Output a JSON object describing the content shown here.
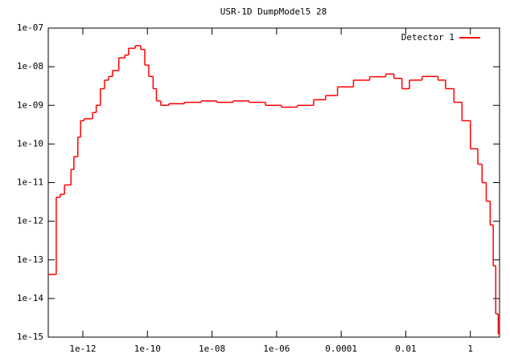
{
  "chart_data": {
    "type": "step",
    "title": "USR-1D DumpModel5 28",
    "xlog": true,
    "ylog": true,
    "legend": "top-right",
    "xlim": [
      8.5e-14,
      8
    ],
    "ylim": [
      1e-15,
      1e-07
    ],
    "xticks": [
      1e-12,
      1e-10,
      {
        "value": 1e-08,
        "label": "1e-08"
      },
      {
        "value": 1e-06,
        "label": "1e-06"
      },
      0.0001,
      0.01,
      1
    ],
    "yticks": [
      {
        "value": 1e-15,
        "label": "1e-15"
      },
      {
        "value": 1e-14,
        "label": "1e-14"
      },
      {
        "value": 1e-13,
        "label": "1e-13"
      },
      {
        "value": 1e-12,
        "label": "1e-12"
      },
      {
        "value": 1e-11,
        "label": "1e-11"
      },
      {
        "value": 1e-10,
        "label": "1e-10"
      },
      {
        "value": 1e-09,
        "label": "1e-09"
      },
      {
        "value": 1e-08,
        "label": "1e-08"
      },
      {
        "value": 1e-07,
        "label": "1e-07"
      }
    ],
    "x": [
      8.5e-14,
      1.5e-13,
      2e-13,
      2.7e-13,
      4.3e-13,
      5.3e-13,
      7e-13,
      8.5e-13,
      1.1e-12,
      2e-12,
      2.6e-12,
      3.5e-12,
      4.7e-12,
      6.3e-12,
      8.3e-12,
      1.3e-11,
      2e-11,
      2.6e-11,
      4.2e-11,
      6.2e-11,
      8.3e-11,
      1.1e-10,
      1.5e-10,
      1.9e-10,
      2.6e-10,
      4.6e-10,
      1.4e-09,
      4.6e-09,
      1.4e-08,
      4.5e-08,
      1.4e-07,
      4.5e-07,
      1.4e-06,
      4.4e-06,
      1.4e-05,
      3.3e-05,
      7.7e-05,
      0.00024,
      0.00076,
      0.0024,
      0.0043,
      0.0076,
      0.013,
      0.032,
      0.1,
      0.17,
      0.31,
      0.55,
      1,
      1.7,
      2.3,
      3.1,
      4.1,
      5.1,
      6.1,
      7.3
    ],
    "series": [
      {
        "name": "Detector 1",
        "color": "#ff0000",
        "values": [
          4.2e-14,
          4.2e-12,
          5e-12,
          8.7e-12,
          2.2e-11,
          4.7e-11,
          1.5e-10,
          4e-10,
          4.5e-10,
          6.5e-10,
          1e-09,
          2.7e-09,
          4.5e-09,
          5.6e-09,
          8e-09,
          1.7e-08,
          2e-08,
          3e-08,
          3.5e-08,
          2.8e-08,
          1.1e-08,
          5.6e-09,
          2.7e-09,
          1.3e-09,
          1e-09,
          1.1e-09,
          1.2e-09,
          1.3e-09,
          1.2e-09,
          1.3e-09,
          1.2e-09,
          1e-09,
          9e-10,
          1e-09,
          1.4e-09,
          1.8e-09,
          3e-09,
          4.5e-09,
          5.5e-09,
          6.5e-09,
          5e-09,
          2.7e-09,
          4.5e-09,
          5.6e-09,
          4.5e-09,
          2.7e-09,
          1.2e-09,
          4e-10,
          7.5e-11,
          3e-11,
          1e-11,
          3.3e-12,
          8e-13,
          7e-14,
          4e-15,
          1.2e-15
        ]
      }
    ]
  }
}
